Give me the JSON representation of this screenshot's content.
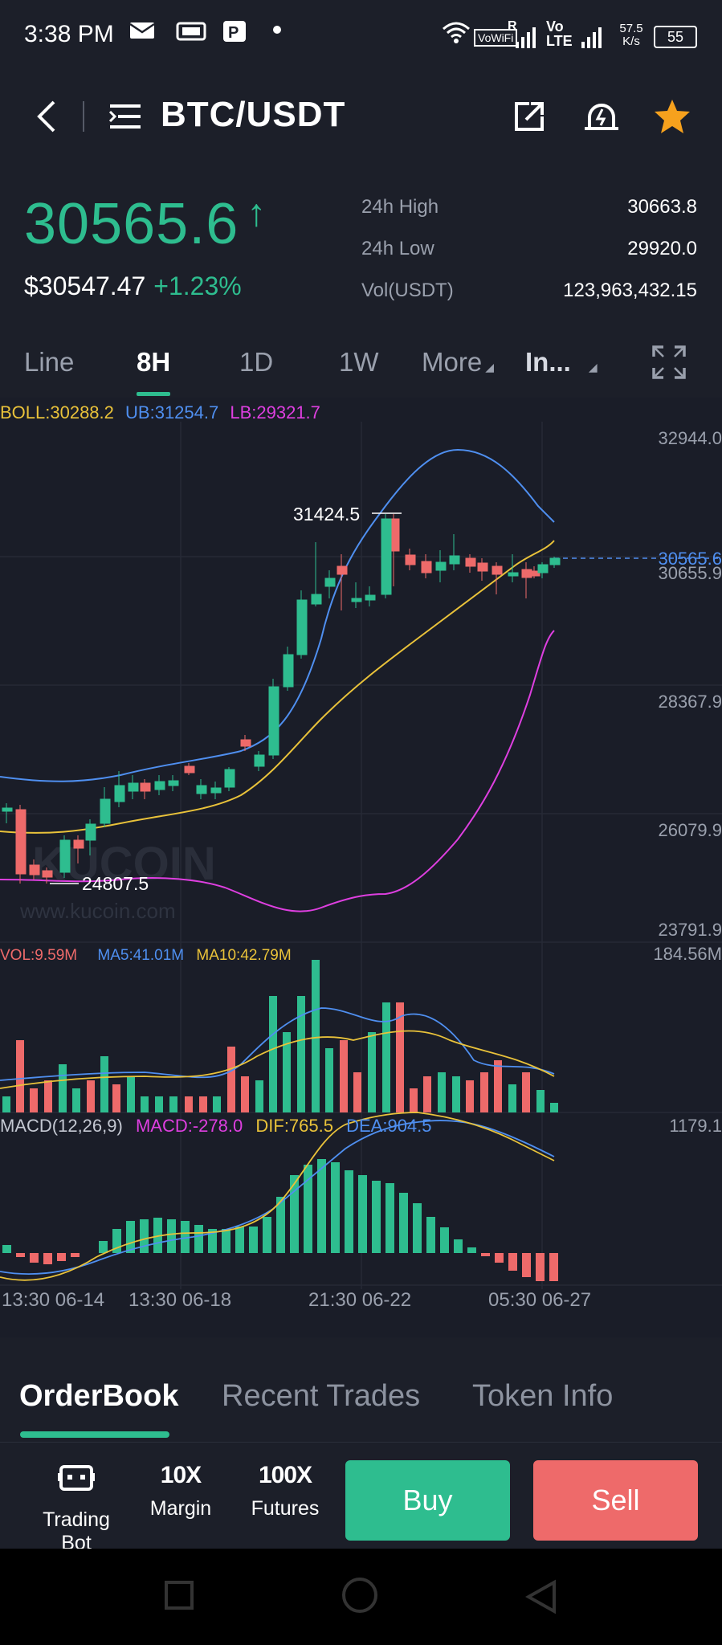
{
  "status_bar": {
    "time": "3:38 PM",
    "network_speed": "57.5 K/s",
    "battery": "55",
    "signal_text": "VoWiFi",
    "lte_text": "Vo LTE"
  },
  "header": {
    "title": "BTC/USDT"
  },
  "ticker": {
    "last_price": "30565.6",
    "arrow": "↑",
    "usd_price": "$30547.47",
    "change": "+1.23%",
    "stats": [
      {
        "label": "24h High",
        "value": "30663.8"
      },
      {
        "label": "24h Low",
        "value": "29920.0"
      },
      {
        "label": "Vol(USDT)",
        "value": "123,963,432.15"
      }
    ]
  },
  "timeframes": {
    "line": "Line",
    "h8": "8H",
    "d1": "1D",
    "w1": "1W",
    "more": "More",
    "indicators": "In..."
  },
  "chart": {
    "boll": "BOLL:30288.2",
    "ub": "UB:31254.7",
    "lb": "LB:29321.7",
    "y_labels": [
      "32944.0",
      "30655.9",
      "28367.9",
      "26079.9",
      "23791.9"
    ],
    "current_price_label": "30565.6",
    "high_marker": "31424.5",
    "low_marker": "24807.5",
    "watermark": "KUCOIN",
    "watermark_url": "www.kucoin.com",
    "vol_label": "VOL:9.59M",
    "ma5": "MA5:41.01M",
    "ma10": "MA10:42.79M",
    "vol_max": "184.56M",
    "macd_title": "MACD(12,26,9)",
    "macd_val": "MACD:-278.0",
    "dif": "DIF:765.5",
    "dea": "DEA:904.5",
    "macd_max": "1179.1",
    "x_labels": [
      "13:30 06-14",
      "13:30 06-18",
      "21:30 06-22",
      "05:30 06-27"
    ],
    "colors": {
      "up": "#2ebd8f",
      "down": "#ee6a6a",
      "boll_mid": "#e9c23a",
      "boll_up": "#4f8ff0",
      "boll_low": "#de3fe0"
    }
  },
  "bottom_tabs": {
    "orderbook": "OrderBook",
    "recent": "Recent Trades",
    "token": "Token Info"
  },
  "actions": {
    "trading_bot": "Trading Bot",
    "margin": "Margin",
    "margin_icon": "10X",
    "futures": "Futures",
    "futures_icon": "100X",
    "buy": "Buy",
    "sell": "Sell"
  }
}
